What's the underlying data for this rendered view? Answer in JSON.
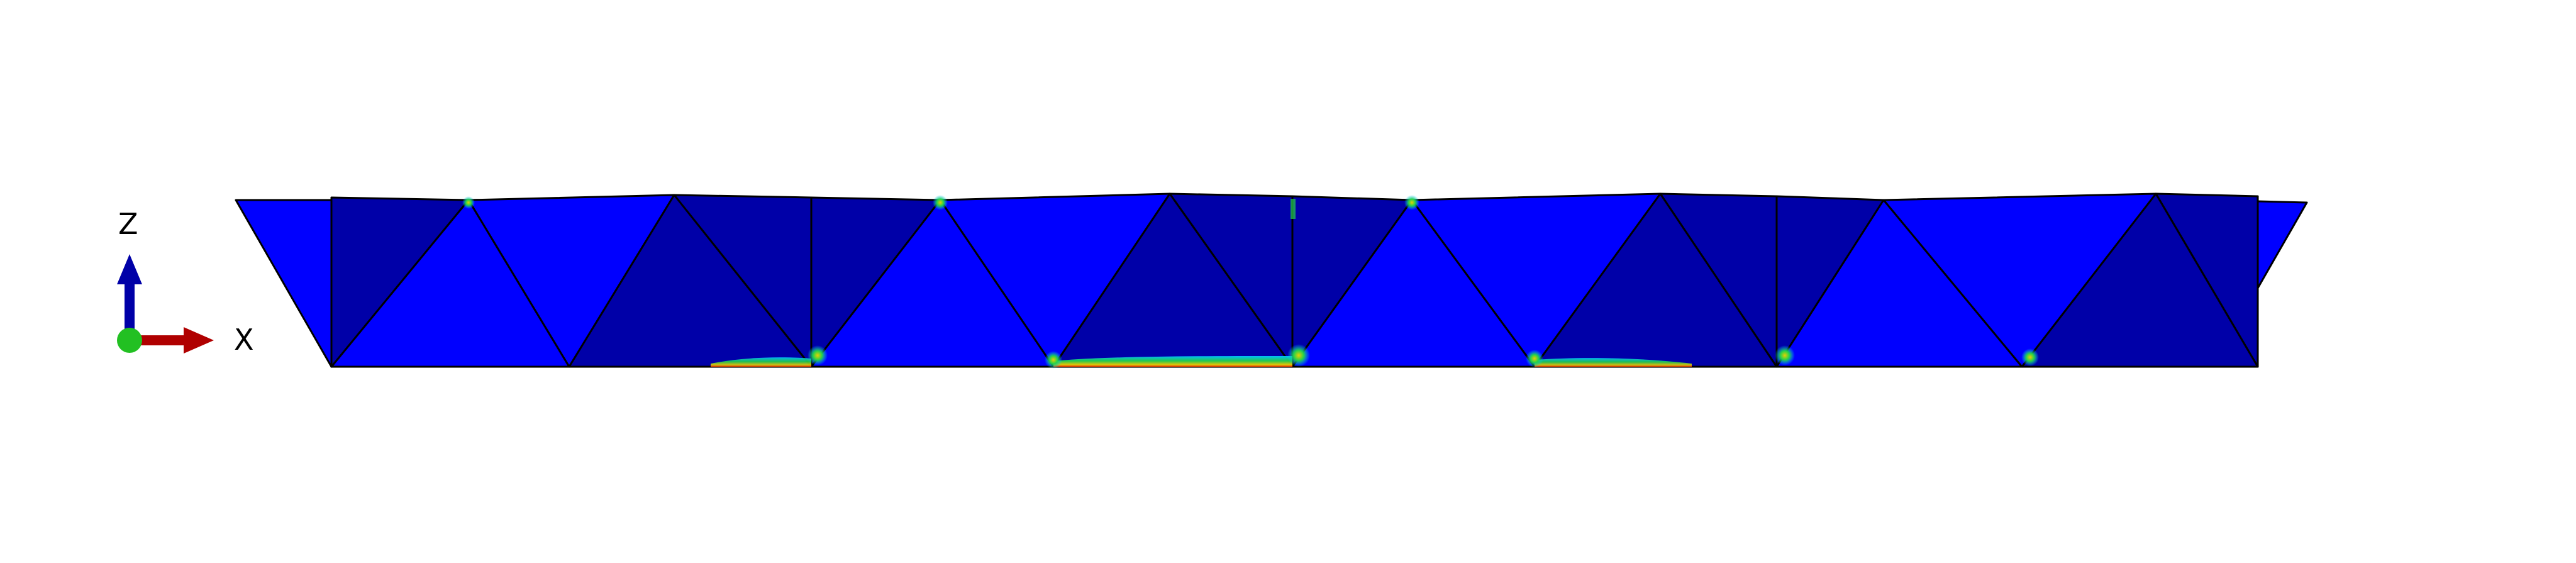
{
  "triad": {
    "z_label": "Z",
    "x_label": "X",
    "colors": {
      "x_axis": "#b00000",
      "z_axis": "#0000a8",
      "origin": "#22c022"
    }
  },
  "model": {
    "colors": {
      "face_light": "#0000ff",
      "face_dark": "#0000a8",
      "edge": "#000000",
      "contour_low": "#00c8ff",
      "contour_mid": "#22d24a",
      "contour_high": "#e8d000",
      "contour_peak": "#ff3a00"
    }
  }
}
